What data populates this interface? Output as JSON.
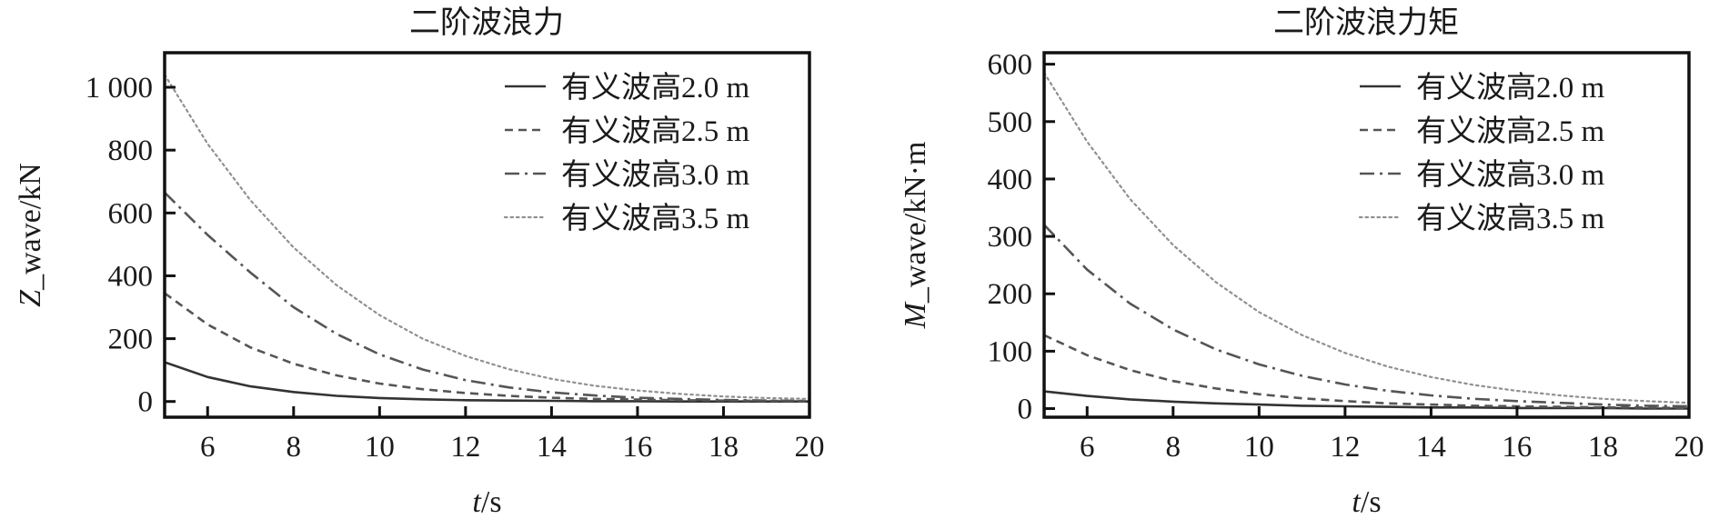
{
  "chart_data": [
    {
      "type": "line",
      "title": "二阶波浪力",
      "xlabel_italic": "t",
      "xlabel_rest": "/s",
      "ylabel_italic": "Z",
      "ylabel_rest": "_wave/kN",
      "xlim": [
        5,
        20
      ],
      "ylim": [
        -50,
        1110
      ],
      "xticks": [
        6,
        8,
        10,
        12,
        14,
        16,
        18,
        20
      ],
      "yticks": [
        0,
        200,
        400,
        600,
        800,
        1000
      ],
      "ytick_labels": [
        "0",
        "200",
        "400",
        "600",
        "800",
        "1 000"
      ],
      "grid": false,
      "legend_position": "top-right",
      "x": [
        5,
        6,
        7,
        8,
        9,
        10,
        11,
        12,
        13,
        14,
        15,
        16,
        17,
        18,
        19,
        20
      ],
      "series": [
        {
          "name": "有义波高2.0 m",
          "style": "solid",
          "color": "#333333",
          "values": [
            125,
            78,
            48,
            30,
            18,
            11,
            7,
            4,
            3,
            2,
            1,
            1,
            0,
            0,
            0,
            0
          ]
        },
        {
          "name": "有义波高2.5 m",
          "style": "dashed",
          "color": "#555555",
          "values": [
            345,
            245,
            172,
            120,
            83,
            57,
            39,
            27,
            18,
            12,
            8,
            6,
            4,
            3,
            2,
            1
          ]
        },
        {
          "name": "有义波高3.0 m",
          "style": "dashdot",
          "color": "#555555",
          "values": [
            665,
            530,
            410,
            300,
            215,
            150,
            102,
            68,
            45,
            29,
            19,
            12,
            8,
            5,
            3,
            2
          ]
        },
        {
          "name": "有义波高3.5 m",
          "style": "dotted",
          "color": "#909090",
          "values": [
            1040,
            820,
            640,
            490,
            370,
            275,
            200,
            145,
            103,
            72,
            50,
            35,
            24,
            16,
            11,
            8
          ]
        }
      ]
    },
    {
      "type": "line",
      "title": "二阶波浪力矩",
      "xlabel_italic": "t",
      "xlabel_rest": "/s",
      "ylabel_italic": "M",
      "ylabel_rest": "_wave/kN·m",
      "xlim": [
        5,
        20
      ],
      "ylim": [
        -15,
        620
      ],
      "xticks": [
        6,
        8,
        10,
        12,
        14,
        16,
        18,
        20
      ],
      "yticks": [
        0,
        100,
        200,
        300,
        400,
        500,
        600
      ],
      "ytick_labels": [
        "0",
        "100",
        "200",
        "300",
        "400",
        "500",
        "600"
      ],
      "grid": false,
      "legend_position": "top-right",
      "x": [
        5,
        6,
        7,
        8,
        9,
        10,
        11,
        12,
        13,
        14,
        15,
        16,
        17,
        18,
        19,
        20
      ],
      "series": [
        {
          "name": "有义波高2.0 m",
          "style": "solid",
          "color": "#333333",
          "values": [
            30,
            22,
            16,
            12,
            9,
            7,
            5,
            4,
            3,
            2,
            2,
            1,
            1,
            1,
            0,
            0
          ]
        },
        {
          "name": "有义波高2.5 m",
          "style": "dashed",
          "color": "#555555",
          "values": [
            128,
            93,
            67,
            48,
            35,
            25,
            18,
            13,
            9,
            7,
            5,
            4,
            3,
            2,
            2,
            1
          ]
        },
        {
          "name": "有义波高3.0 m",
          "style": "dashdot",
          "color": "#555555",
          "values": [
            320,
            242,
            183,
            138,
            103,
            77,
            57,
            42,
            31,
            23,
            17,
            13,
            10,
            7,
            5,
            4
          ]
        },
        {
          "name": "有义波高3.5 m",
          "style": "dotted",
          "color": "#909090",
          "values": [
            585,
            465,
            365,
            285,
            220,
            168,
            128,
            97,
            73,
            55,
            41,
            31,
            23,
            17,
            13,
            10
          ]
        }
      ]
    }
  ]
}
